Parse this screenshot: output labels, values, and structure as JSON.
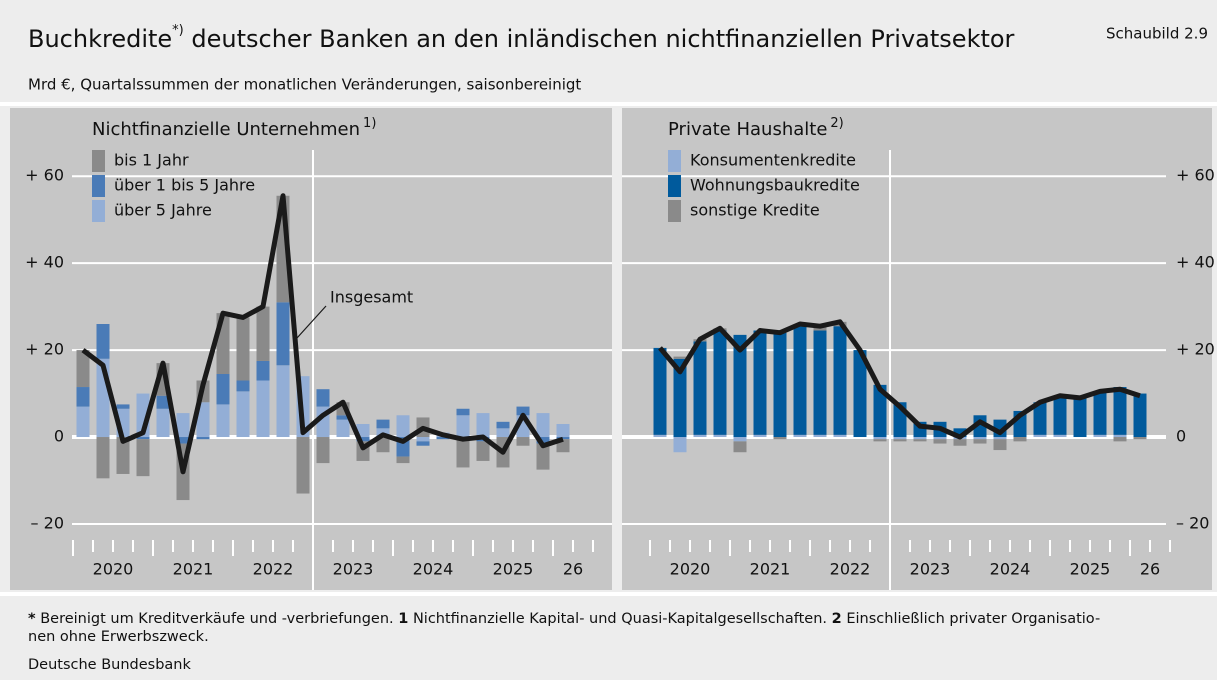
{
  "title": {
    "text": "Buchkredite",
    "sup": "*)",
    "rest": " deutscher Banken an den inländischen nichtfinanziellen Privatsektor"
  },
  "figure_label": "Schaubild 2.9",
  "subtitle": "Mrd €, Quartalssummen der monatlichen Veränderungen, saisonbereinigt",
  "chart_data": [
    {
      "type": "stacked_bar_line",
      "title": "Nichtfinanzielle Unternehmen",
      "title_sup": "1)",
      "year_labels": [
        "2020",
        "2021",
        "2022",
        "2023",
        "2024",
        "2025",
        "26"
      ],
      "ylim": [
        -23,
        75
      ],
      "yticks": [
        {
          "value": -20,
          "label": "– 20"
        },
        0,
        {
          "value": 20,
          "label": "+ 20"
        },
        {
          "value": 40,
          "label": "+ 40"
        },
        {
          "value": 60,
          "label": "+ 60"
        }
      ],
      "series": [
        {
          "name": "über 5 Jahre",
          "color": "#93aed6",
          "values": [
            7,
            18,
            6.5,
            10,
            6.5,
            5.5,
            8,
            7.5,
            10.5,
            13,
            16.5,
            14,
            7,
            4,
            3,
            2,
            5,
            -1,
            1,
            5,
            5.5,
            2,
            5,
            5.5,
            3
          ]
        },
        {
          "name": "über 1 bis 5 Jahre",
          "color": "#4a7bb7",
          "values": [
            4.5,
            8,
            1,
            -0.5,
            3,
            -1.5,
            -0.5,
            7,
            2.5,
            4.5,
            14.5,
            0,
            4,
            1,
            -1,
            2,
            -4.5,
            -1,
            -0.5,
            1.5,
            -1,
            1.5,
            2,
            -1.5,
            -0.5
          ]
        },
        {
          "name": "bis 1 Jahr",
          "color": "#8a8a8a",
          "values": [
            8.5,
            -9.5,
            -8.5,
            -8.5,
            7.5,
            -13,
            5,
            14,
            14.5,
            12.5,
            24.5,
            -13,
            -6,
            3,
            -4.5,
            -3.5,
            -1.5,
            4.5,
            0,
            -7,
            -4.5,
            -7,
            -2,
            -6,
            -3
          ]
        }
      ],
      "line": {
        "name": "Insgesamt",
        "color": "#1a1a1a",
        "values": [
          20,
          16.5,
          -1,
          1,
          17,
          -8,
          12,
          28.5,
          27.5,
          30,
          55.5,
          1,
          5,
          8,
          -2.5,
          0.5,
          -1,
          2,
          0.5,
          -0.5,
          0,
          -3.5,
          5,
          -2,
          -0.5
        ]
      },
      "grid": true,
      "legend": "top-left",
      "ytick_side": "left"
    },
    {
      "type": "stacked_bar_line",
      "title": "Private Haushalte",
      "title_sup": "2)",
      "year_labels": [
        "2020",
        "2021",
        "2022",
        "2023",
        "2024",
        "2025",
        "26"
      ],
      "ylim": [
        -23,
        75
      ],
      "yticks": [
        {
          "value": -20,
          "label": "– 20"
        },
        0,
        {
          "value": 20,
          "label": "+ 20"
        },
        {
          "value": 40,
          "label": "+ 40"
        },
        {
          "value": 60,
          "label": "+ 60"
        }
      ],
      "series": [
        {
          "name": "Konsumentenkredite",
          "color": "#93aed6",
          "values": [
            0.5,
            -3.5,
            0.5,
            0.5,
            -1,
            0.5,
            0,
            0.5,
            0.5,
            0.5,
            0,
            -0.5,
            -0.5,
            -0.5,
            -0.5,
            -0.5,
            -0.5,
            -0.5,
            0,
            0.5,
            0.5,
            0,
            0.5,
            0.5,
            0
          ]
        },
        {
          "name": "Wohnungsbaukredite",
          "color": "#005a9c",
          "values": [
            20,
            18,
            21.5,
            24,
            23.5,
            24,
            24,
            25,
            24,
            25,
            20,
            12,
            8,
            3.5,
            3.5,
            2,
            5,
            4,
            6,
            7.5,
            9,
            9,
            10,
            11,
            10
          ]
        },
        {
          "name": "sonstige Kredite",
          "color": "#8a8a8a",
          "values": [
            0,
            0.5,
            0.5,
            0.5,
            -2.5,
            0,
            -0.5,
            0.5,
            1,
            1,
            0,
            -0.5,
            -0.5,
            -0.5,
            -1,
            -1.5,
            -1,
            -2.5,
            -1,
            0,
            0,
            0,
            0,
            -1,
            -0.5
          ]
        }
      ],
      "line": {
        "color": "#1a1a1a",
        "values": [
          20.5,
          15,
          22.5,
          25,
          20,
          24.5,
          24,
          26,
          25.5,
          26.5,
          20,
          11,
          7,
          2.5,
          2,
          0,
          3.5,
          1,
          5,
          8,
          9.5,
          9,
          10.5,
          11,
          9.5
        ]
      },
      "grid": true,
      "legend": "top-left",
      "ytick_side": "right"
    }
  ],
  "footnotes": [
    {
      "mark": "*",
      "text": " Bereinigt um Kreditverkäufe und -verbriefungen. "
    },
    {
      "mark": "1",
      "text": " Nichtfinanzielle Kapital- und Quasi-Kapitalgesellschaften. "
    },
    {
      "mark": "2",
      "text": " Einschließlich privater Organisatio-nen ohne Erwerbszweck."
    }
  ],
  "source": "Deutsche Bundesbank"
}
